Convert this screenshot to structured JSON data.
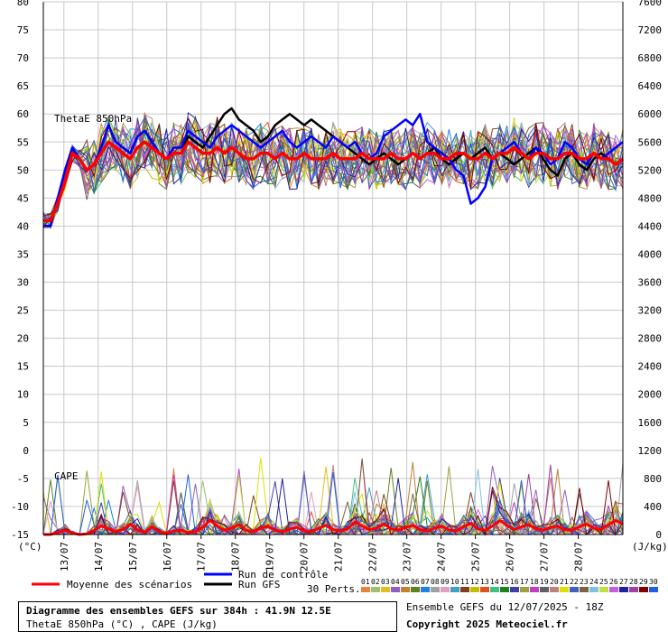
{
  "chart_data": {
    "type": "line",
    "title": "Diagramme des ensembles GEFS sur 384h : 41.9N 12.5E",
    "subtitle": "ThetaE 850hPa (°C) , CAPE (J/kg)",
    "left_axis": {
      "unit_label": "(°C)",
      "ylim": [
        -15,
        80
      ],
      "ticks": [
        80,
        75,
        70,
        65,
        60,
        55,
        50,
        45,
        40,
        35,
        30,
        25,
        20,
        15,
        10,
        5,
        0,
        -5,
        -10,
        -15
      ]
    },
    "right_axis": {
      "unit_label": "(J/kg)",
      "ylim": [
        0,
        7600
      ],
      "ticks": [
        7600,
        7200,
        6800,
        6400,
        6000,
        5600,
        5200,
        4800,
        4400,
        4000,
        3600,
        3200,
        2800,
        2400,
        2000,
        1600,
        1200,
        800,
        400,
        0
      ]
    },
    "x_dates": [
      "13/07",
      "14/07",
      "15/07",
      "16/07",
      "17/07",
      "18/07",
      "19/07",
      "20/07",
      "21/07",
      "22/07",
      "23/07",
      "24/07",
      "25/07",
      "26/07",
      "27/07",
      "28/07"
    ],
    "panel_labels": {
      "thetae": "ThetaE 850hPa",
      "cape": "CAPE"
    },
    "legend": {
      "mean": "Moyenne des scénarios",
      "control": "Run de contrôle",
      "gfs": "Run GFS",
      "perts": "30 Perts."
    },
    "members": [
      "01",
      "02",
      "03",
      "04",
      "05",
      "06",
      "07",
      "08",
      "09",
      "10",
      "11",
      "12",
      "13",
      "14",
      "15",
      "16",
      "17",
      "18",
      "19",
      "20",
      "21",
      "22",
      "23",
      "24",
      "25",
      "26",
      "27",
      "28",
      "29",
      "30"
    ],
    "member_colors": [
      "#e8823c",
      "#a0c070",
      "#e0c020",
      "#9060c0",
      "#c08030",
      "#608020",
      "#2080e0",
      "#a0a0a0",
      "#e0a0c0",
      "#40a0c0",
      "#804020",
      "#c0c000",
      "#e05020",
      "#40c080",
      "#208020",
      "#4040a0",
      "#a0a040",
      "#c040c0",
      "#606060",
      "#c08080",
      "#e0e000",
      "#4060c0",
      "#806040",
      "#80c0e0",
      "#c0e040",
      "#c060e0",
      "#2020a0",
      "#a040a0",
      "#800000",
      "#2060e0"
    ],
    "series_summary": {
      "thetae_mean": [
        41,
        41,
        44,
        48,
        53,
        52,
        50,
        51,
        53,
        55,
        54,
        53,
        52,
        54,
        55,
        54,
        53,
        52,
        53,
        53,
        55,
        54,
        53,
        53,
        54,
        53,
        54,
        53,
        52,
        52,
        53,
        53,
        52,
        53,
        52,
        52,
        53,
        52,
        52,
        52,
        53,
        52,
        52,
        52,
        53,
        52,
        52,
        52,
        53,
        52,
        52,
        53,
        52,
        53,
        53,
        52,
        52,
        53,
        53,
        52,
        52,
        53,
        52,
        53,
        53,
        54,
        53,
        52,
        53,
        53,
        52,
        52,
        53,
        53,
        52,
        52,
        53,
        52,
        52,
        51,
        52
      ],
      "thetae_control": [
        40,
        40,
        45,
        50,
        54,
        52,
        50,
        51,
        54,
        58,
        55,
        54,
        53,
        56,
        57,
        55,
        53,
        52,
        54,
        54,
        57,
        56,
        55,
        54,
        56,
        57,
        58,
        57,
        56,
        55,
        54,
        55,
        56,
        57,
        55,
        54,
        55,
        56,
        55,
        54,
        56,
        55,
        54,
        55,
        53,
        52,
        53,
        56,
        57,
        58,
        59,
        58,
        60,
        55,
        54,
        53,
        52,
        50,
        49,
        44,
        45,
        47,
        52,
        53,
        54,
        55,
        53,
        52,
        54,
        53,
        51,
        52,
        55,
        54,
        52,
        51,
        53,
        52,
        53,
        54,
        55
      ],
      "thetae_gfs": [
        40,
        40,
        45,
        50,
        54,
        52,
        50,
        51,
        54,
        58,
        55,
        54,
        53,
        56,
        57,
        55,
        53,
        52,
        53,
        53,
        56,
        55,
        54,
        56,
        58,
        60,
        61,
        59,
        58,
        57,
        55,
        56,
        58,
        59,
        60,
        59,
        58,
        59,
        58,
        57,
        56,
        55,
        54,
        53,
        52,
        51,
        52,
        53,
        52,
        51,
        52,
        53,
        52,
        53,
        54,
        52,
        51,
        52,
        53,
        52,
        53,
        54,
        52,
        53,
        52,
        51,
        52,
        53,
        54,
        52,
        50,
        49,
        52,
        53,
        51,
        50,
        52,
        53,
        52,
        51,
        52
      ],
      "cape_mean_jkg": [
        0,
        0,
        30,
        60,
        20,
        0,
        10,
        60,
        120,
        80,
        40,
        70,
        150,
        60,
        30,
        110,
        40,
        20,
        50,
        60,
        30,
        40,
        100,
        200,
        120,
        60,
        90,
        140,
        60,
        40,
        90,
        120,
        60,
        40,
        80,
        100,
        50,
        40,
        90,
        130,
        70,
        50,
        80,
        180,
        120,
        70,
        90,
        150,
        80,
        60,
        100,
        130,
        70,
        50,
        90,
        120,
        60,
        50,
        110,
        160,
        80,
        60,
        120,
        200,
        130,
        70,
        110,
        140,
        80,
        60,
        100,
        120,
        70,
        60,
        110,
        150,
        90,
        70,
        140,
        200,
        150
      ]
    }
  },
  "footer": {
    "box_title": "Diagramme des ensembles GEFS sur 384h : 41.9N 12.5E",
    "box_subtitle": "ThetaE 850hPa (°C) , CAPE (J/kg)",
    "run_info": "Ensemble GEFS du 12/07/2025 - 18Z",
    "copyright": "Copyright 2025 Meteociel.fr"
  }
}
